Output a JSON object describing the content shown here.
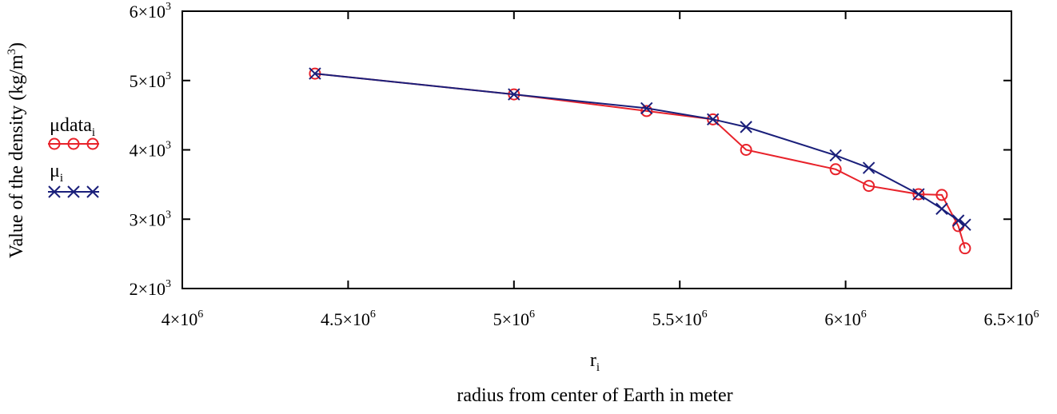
{
  "chart_data": {
    "type": "line",
    "title": "",
    "xlabel": "r",
    "xlabel_subscript": "i",
    "xlabel_caption": "radius from center of Earth in meter",
    "ylabel": "Value of the density (kg/m",
    "ylabel_superscript": "3",
    "ylabel_suffix": ")",
    "xlim": [
      4000000,
      6500000
    ],
    "ylim": [
      2000,
      6000
    ],
    "x_ticks": [
      {
        "value": 4000000,
        "base": "4×10",
        "exp": "6"
      },
      {
        "value": 4500000,
        "base": "4.5×10",
        "exp": "6"
      },
      {
        "value": 5000000,
        "base": "5×10",
        "exp": "6"
      },
      {
        "value": 5500000,
        "base": "5.5×10",
        "exp": "6"
      },
      {
        "value": 6000000,
        "base": "6×10",
        "exp": "6"
      },
      {
        "value": 6500000,
        "base": "6.5×10",
        "exp": "6"
      }
    ],
    "y_ticks": [
      {
        "value": 2000,
        "base": "2×10",
        "exp": "3"
      },
      {
        "value": 3000,
        "base": "3×10",
        "exp": "3"
      },
      {
        "value": 4000,
        "base": "4×10",
        "exp": "3"
      },
      {
        "value": 5000,
        "base": "5×10",
        "exp": "3"
      },
      {
        "value": 6000,
        "base": "6×10",
        "exp": "3"
      }
    ],
    "grid": false,
    "legend_position": "left",
    "series": [
      {
        "name": "μdata",
        "name_subscript": "i",
        "color": "#e8222a",
        "marker": "circle",
        "x": [
          4400000,
          5000000,
          5400000,
          5600000,
          5700000,
          5970000,
          6070000,
          6220000,
          6290000,
          6340000,
          6360000
        ],
        "y": [
          5100,
          4800,
          4560,
          4440,
          4000,
          3720,
          3480,
          3360,
          3350,
          2900,
          2580
        ]
      },
      {
        "name": "μ",
        "name_subscript": "i",
        "color": "#1a1f7a",
        "marker": "x",
        "x": [
          4400000,
          5000000,
          5400000,
          5600000,
          5700000,
          5970000,
          6070000,
          6220000,
          6290000,
          6340000,
          6360000
        ],
        "y": [
          5100,
          4800,
          4600,
          4440,
          4330,
          3920,
          3740,
          3360,
          3150,
          2980,
          2920
        ]
      }
    ]
  }
}
